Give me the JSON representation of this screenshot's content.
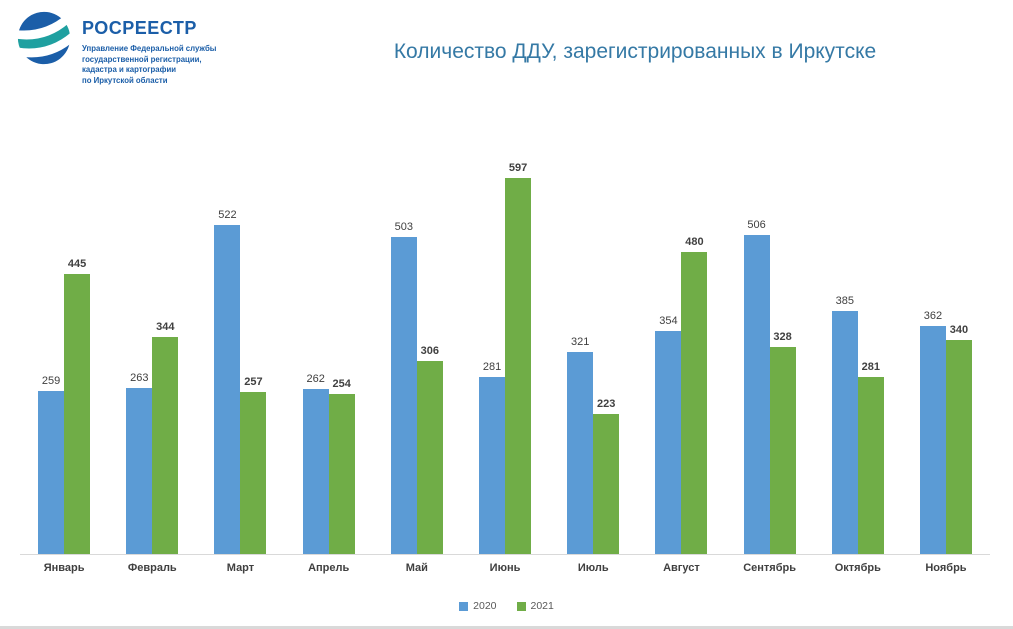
{
  "logo": {
    "brand": "РОСРЕЕСТР",
    "subtitle_lines": [
      "Управление Федеральной службы",
      "государственной регистрации,",
      "кадастра и картографии",
      "по Иркутской области"
    ]
  },
  "title": "Количество ДДУ, зарегистрированных в Иркутске",
  "colors": {
    "series_2020": "#5B9BD5",
    "series_2021": "#70AD47",
    "title_text": "#3579A5",
    "logo_blue": "#1B5EA8",
    "logo_teal": "#1FA0A0",
    "axis_line": "#D9D9D9",
    "label_text": "#404040"
  },
  "chart_data": {
    "type": "bar",
    "title": "Количество ДДУ, зарегистрированных в Иркутске",
    "categories": [
      "Январь",
      "Февраль",
      "Март",
      "Апрель",
      "Май",
      "Июнь",
      "Июль",
      "Август",
      "Сентябрь",
      "Октябрь",
      "Ноябрь"
    ],
    "series": [
      {
        "name": "2020",
        "color": "#5B9BD5",
        "values": [
          259,
          263,
          522,
          262,
          503,
          281,
          321,
          354,
          506,
          385,
          362
        ]
      },
      {
        "name": "2021",
        "color": "#70AD47",
        "values": [
          445,
          344,
          257,
          254,
          306,
          597,
          223,
          480,
          328,
          281,
          340
        ]
      }
    ],
    "xlabel": "",
    "ylabel": "",
    "ylim": [
      0,
      665
    ],
    "grid": false,
    "data_labels": true,
    "legend_position": "bottom"
  }
}
